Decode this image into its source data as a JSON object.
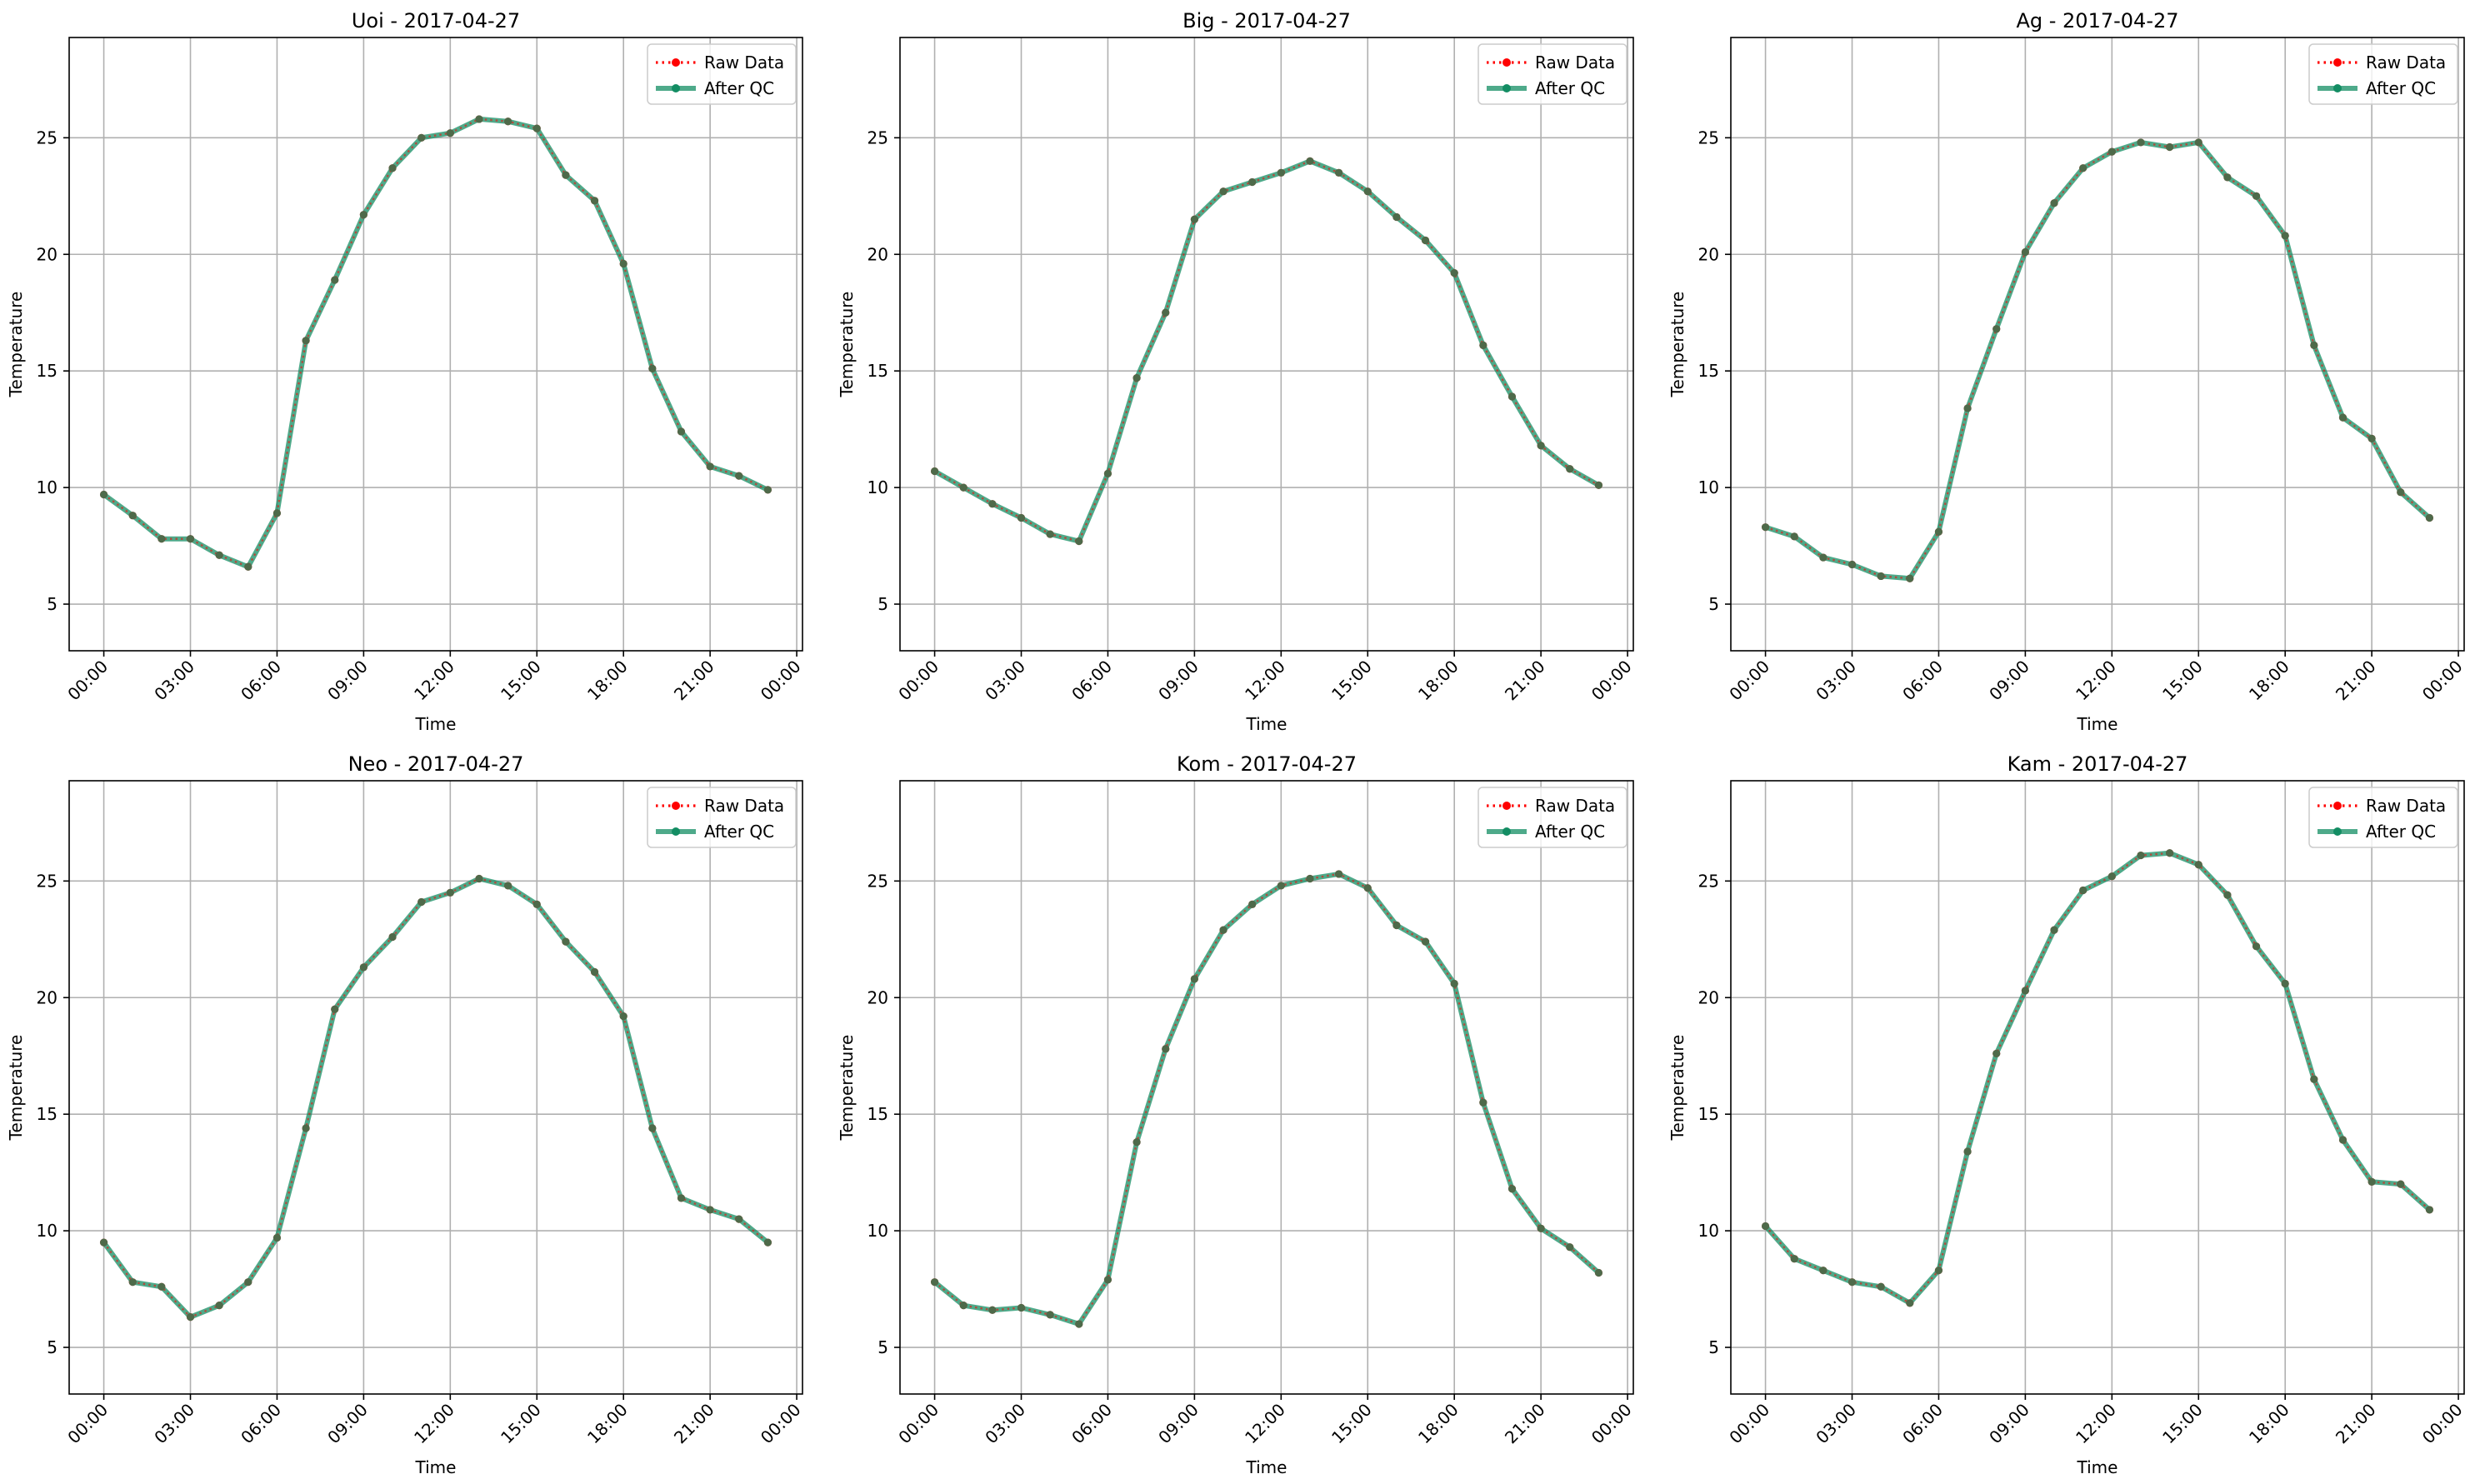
{
  "figure": {
    "background": "#ffffff"
  },
  "legend_labels": {
    "raw": "Raw Data",
    "qc": "After QC"
  },
  "colors": {
    "raw": "#ff0000",
    "qc": "#138d63",
    "grid": "#b0b0b0"
  },
  "chart_data": [
    {
      "type": "line",
      "title": "Uoi - 2017-04-27",
      "xlabel": "Time",
      "ylabel": "Temperature",
      "xlim": [
        "2017-04-26 22:48",
        "2017-04-28 00:12"
      ],
      "ylim": [
        3,
        29.3
      ],
      "x_ticks": [
        "00:00",
        "03:00",
        "06:00",
        "09:00",
        "12:00",
        "15:00",
        "18:00",
        "21:00",
        "00:00"
      ],
      "y_ticks": [
        5,
        10,
        15,
        20,
        25
      ],
      "grid": true,
      "legend": "upper right",
      "x": [
        "00:00",
        "01:00",
        "02:00",
        "03:00",
        "04:00",
        "05:00",
        "06:00",
        "07:00",
        "08:00",
        "09:00",
        "10:00",
        "11:00",
        "12:00",
        "13:00",
        "14:00",
        "15:00",
        "16:00",
        "17:00",
        "18:00",
        "19:00",
        "20:00",
        "21:00",
        "22:00",
        "23:00"
      ],
      "series": [
        {
          "name": "Raw Data",
          "values": [
            9.7,
            8.8,
            7.8,
            7.8,
            7.1,
            6.6,
            8.9,
            16.3,
            18.9,
            21.7,
            23.7,
            25.0,
            25.2,
            25.8,
            25.7,
            25.4,
            23.4,
            22.3,
            19.6,
            15.1,
            12.4,
            10.9,
            10.5,
            9.9
          ]
        },
        {
          "name": "After QC",
          "values": [
            9.7,
            8.8,
            7.8,
            7.8,
            7.1,
            6.6,
            8.9,
            16.3,
            18.9,
            21.7,
            23.7,
            25.0,
            25.2,
            25.8,
            25.7,
            25.4,
            23.4,
            22.3,
            19.6,
            15.1,
            12.4,
            10.9,
            10.5,
            9.9
          ]
        }
      ]
    },
    {
      "type": "line",
      "title": "Big - 2017-04-27",
      "xlabel": "Time",
      "ylabel": "Temperature",
      "xlim": [
        "2017-04-26 22:48",
        "2017-04-28 00:12"
      ],
      "ylim": [
        3,
        29.3
      ],
      "x_ticks": [
        "00:00",
        "03:00",
        "06:00",
        "09:00",
        "12:00",
        "15:00",
        "18:00",
        "21:00",
        "00:00"
      ],
      "y_ticks": [
        5,
        10,
        15,
        20,
        25
      ],
      "grid": true,
      "legend": "upper right",
      "x": [
        "00:00",
        "01:00",
        "02:00",
        "03:00",
        "04:00",
        "05:00",
        "06:00",
        "07:00",
        "08:00",
        "09:00",
        "10:00",
        "11:00",
        "12:00",
        "13:00",
        "14:00",
        "15:00",
        "16:00",
        "17:00",
        "18:00",
        "19:00",
        "20:00",
        "21:00",
        "22:00",
        "23:00"
      ],
      "series": [
        {
          "name": "Raw Data",
          "values": [
            10.7,
            10.0,
            9.3,
            8.7,
            8.0,
            7.7,
            10.6,
            14.7,
            17.5,
            21.5,
            22.7,
            23.1,
            23.5,
            24.0,
            23.5,
            22.7,
            21.6,
            20.6,
            19.2,
            16.1,
            13.9,
            11.8,
            10.8,
            10.1
          ]
        },
        {
          "name": "After QC",
          "values": [
            10.7,
            10.0,
            9.3,
            8.7,
            8.0,
            7.7,
            10.6,
            14.7,
            17.5,
            21.5,
            22.7,
            23.1,
            23.5,
            24.0,
            23.5,
            22.7,
            21.6,
            20.6,
            19.2,
            16.1,
            13.9,
            11.8,
            10.8,
            10.1
          ]
        }
      ]
    },
    {
      "type": "line",
      "title": "Ag - 2017-04-27",
      "xlabel": "Time",
      "ylabel": "Temperature",
      "xlim": [
        "2017-04-26 22:48",
        "2017-04-28 00:12"
      ],
      "ylim": [
        3,
        29.3
      ],
      "x_ticks": [
        "00:00",
        "03:00",
        "06:00",
        "09:00",
        "12:00",
        "15:00",
        "18:00",
        "21:00",
        "00:00"
      ],
      "y_ticks": [
        5,
        10,
        15,
        20,
        25
      ],
      "grid": true,
      "legend": "upper right",
      "x": [
        "00:00",
        "01:00",
        "02:00",
        "03:00",
        "04:00",
        "05:00",
        "06:00",
        "07:00",
        "08:00",
        "09:00",
        "10:00",
        "11:00",
        "12:00",
        "13:00",
        "14:00",
        "15:00",
        "16:00",
        "17:00",
        "18:00",
        "19:00",
        "20:00",
        "21:00",
        "22:00",
        "23:00"
      ],
      "series": [
        {
          "name": "Raw Data",
          "values": [
            8.3,
            7.9,
            7.0,
            6.7,
            6.2,
            6.1,
            8.1,
            13.4,
            16.8,
            20.1,
            22.2,
            23.7,
            24.4,
            24.8,
            24.6,
            24.8,
            23.3,
            22.5,
            20.8,
            16.1,
            13.0,
            12.1,
            9.8,
            8.7
          ]
        },
        {
          "name": "After QC",
          "values": [
            8.3,
            7.9,
            7.0,
            6.7,
            6.2,
            6.1,
            8.1,
            13.4,
            16.8,
            20.1,
            22.2,
            23.7,
            24.4,
            24.8,
            24.6,
            24.8,
            23.3,
            22.5,
            20.8,
            16.1,
            13.0,
            12.1,
            9.8,
            8.7
          ]
        }
      ]
    },
    {
      "type": "line",
      "title": "Neo - 2017-04-27",
      "xlabel": "Time",
      "ylabel": "Temperature",
      "xlim": [
        "2017-04-26 22:48",
        "2017-04-28 00:12"
      ],
      "ylim": [
        3,
        29.3
      ],
      "x_ticks": [
        "00:00",
        "03:00",
        "06:00",
        "09:00",
        "12:00",
        "15:00",
        "18:00",
        "21:00",
        "00:00"
      ],
      "y_ticks": [
        5,
        10,
        15,
        20,
        25
      ],
      "grid": true,
      "legend": "upper right",
      "x": [
        "00:00",
        "01:00",
        "02:00",
        "03:00",
        "04:00",
        "05:00",
        "06:00",
        "07:00",
        "08:00",
        "09:00",
        "10:00",
        "11:00",
        "12:00",
        "13:00",
        "14:00",
        "15:00",
        "16:00",
        "17:00",
        "18:00",
        "19:00",
        "20:00",
        "21:00",
        "22:00",
        "23:00"
      ],
      "series": [
        {
          "name": "Raw Data",
          "values": [
            9.5,
            7.8,
            7.6,
            6.3,
            6.8,
            7.8,
            9.7,
            14.4,
            19.5,
            21.3,
            22.6,
            24.1,
            24.5,
            25.1,
            24.8,
            24.0,
            22.4,
            21.1,
            19.2,
            14.4,
            11.4,
            10.9,
            10.5,
            9.5
          ]
        },
        {
          "name": "After QC",
          "values": [
            9.5,
            7.8,
            7.6,
            6.3,
            6.8,
            7.8,
            9.7,
            14.4,
            19.5,
            21.3,
            22.6,
            24.1,
            24.5,
            25.1,
            24.8,
            24.0,
            22.4,
            21.1,
            19.2,
            14.4,
            11.4,
            10.9,
            10.5,
            9.5
          ]
        }
      ]
    },
    {
      "type": "line",
      "title": "Kom - 2017-04-27",
      "xlabel": "Time",
      "ylabel": "Temperature",
      "xlim": [
        "2017-04-26 22:48",
        "2017-04-28 00:12"
      ],
      "ylim": [
        3,
        29.3
      ],
      "x_ticks": [
        "00:00",
        "03:00",
        "06:00",
        "09:00",
        "12:00",
        "15:00",
        "18:00",
        "21:00",
        "00:00"
      ],
      "y_ticks": [
        5,
        10,
        15,
        20,
        25
      ],
      "grid": true,
      "legend": "upper right",
      "x": [
        "00:00",
        "01:00",
        "02:00",
        "03:00",
        "04:00",
        "05:00",
        "06:00",
        "07:00",
        "08:00",
        "09:00",
        "10:00",
        "11:00",
        "12:00",
        "13:00",
        "14:00",
        "15:00",
        "16:00",
        "17:00",
        "18:00",
        "19:00",
        "20:00",
        "21:00",
        "22:00",
        "23:00"
      ],
      "series": [
        {
          "name": "Raw Data",
          "values": [
            7.8,
            6.8,
            6.6,
            6.7,
            6.4,
            6.0,
            7.9,
            13.8,
            17.8,
            20.8,
            22.9,
            24.0,
            24.8,
            25.1,
            25.3,
            24.7,
            23.1,
            22.4,
            20.6,
            15.5,
            11.8,
            10.1,
            9.3,
            8.2
          ]
        },
        {
          "name": "After QC",
          "values": [
            7.8,
            6.8,
            6.6,
            6.7,
            6.4,
            6.0,
            7.9,
            13.8,
            17.8,
            20.8,
            22.9,
            24.0,
            24.8,
            25.1,
            25.3,
            24.7,
            23.1,
            22.4,
            20.6,
            15.5,
            11.8,
            10.1,
            9.3,
            8.2
          ]
        }
      ]
    },
    {
      "type": "line",
      "title": "Kam - 2017-04-27",
      "xlabel": "Time",
      "ylabel": "Temperature",
      "xlim": [
        "2017-04-26 22:48",
        "2017-04-28 00:12"
      ],
      "ylim": [
        3,
        29.3
      ],
      "x_ticks": [
        "00:00",
        "03:00",
        "06:00",
        "09:00",
        "12:00",
        "15:00",
        "18:00",
        "21:00",
        "00:00"
      ],
      "y_ticks": [
        5,
        10,
        15,
        20,
        25
      ],
      "grid": true,
      "legend": "upper right",
      "x": [
        "00:00",
        "01:00",
        "02:00",
        "03:00",
        "04:00",
        "05:00",
        "06:00",
        "07:00",
        "08:00",
        "09:00",
        "10:00",
        "11:00",
        "12:00",
        "13:00",
        "14:00",
        "15:00",
        "16:00",
        "17:00",
        "18:00",
        "19:00",
        "20:00",
        "21:00",
        "22:00",
        "23:00"
      ],
      "series": [
        {
          "name": "Raw Data",
          "values": [
            10.2,
            8.8,
            8.3,
            7.8,
            7.6,
            6.9,
            8.3,
            13.4,
            17.6,
            20.3,
            22.9,
            24.6,
            25.2,
            26.1,
            26.2,
            25.7,
            24.4,
            22.2,
            20.6,
            16.5,
            13.9,
            12.1,
            12.0,
            10.9
          ]
        },
        {
          "name": "After QC",
          "values": [
            10.2,
            8.8,
            8.3,
            7.8,
            7.6,
            6.9,
            8.3,
            13.4,
            17.6,
            20.3,
            22.9,
            24.6,
            25.2,
            26.1,
            26.2,
            25.7,
            24.4,
            22.2,
            20.6,
            16.5,
            13.9,
            12.1,
            12.0,
            10.9
          ]
        }
      ]
    }
  ]
}
